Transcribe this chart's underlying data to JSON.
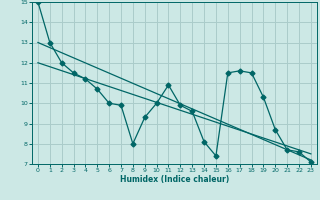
{
  "title": "",
  "xlabel": "Humidex (Indice chaleur)",
  "ylabel": "",
  "xlim": [
    -0.5,
    23.5
  ],
  "ylim": [
    7,
    15
  ],
  "yticks": [
    7,
    8,
    9,
    10,
    11,
    12,
    13,
    14,
    15
  ],
  "xticks": [
    0,
    1,
    2,
    3,
    4,
    5,
    6,
    7,
    8,
    9,
    10,
    11,
    12,
    13,
    14,
    15,
    16,
    17,
    18,
    19,
    20,
    21,
    22,
    23
  ],
  "bg_color": "#cce8e5",
  "grid_color": "#aaccca",
  "line_color": "#006666",
  "jagged_x": [
    0,
    1,
    2,
    3,
    4,
    5,
    6,
    7,
    8,
    9,
    10,
    11,
    12,
    13,
    14,
    15,
    16,
    17,
    18,
    19,
    20,
    21,
    22,
    23
  ],
  "jagged_y": [
    15,
    13,
    12,
    11.5,
    11.2,
    10.7,
    10.0,
    9.9,
    8.0,
    9.3,
    10.0,
    10.9,
    9.9,
    9.6,
    8.1,
    7.4,
    11.5,
    11.6,
    11.5,
    10.3,
    8.7,
    7.7,
    7.6,
    7.1
  ],
  "trend1_x": [
    0,
    23
  ],
  "trend1_y": [
    13.0,
    7.2
  ],
  "trend2_x": [
    0,
    23
  ],
  "trend2_y": [
    12.0,
    7.5
  ],
  "marker_size": 2.5,
  "line_width": 0.9
}
